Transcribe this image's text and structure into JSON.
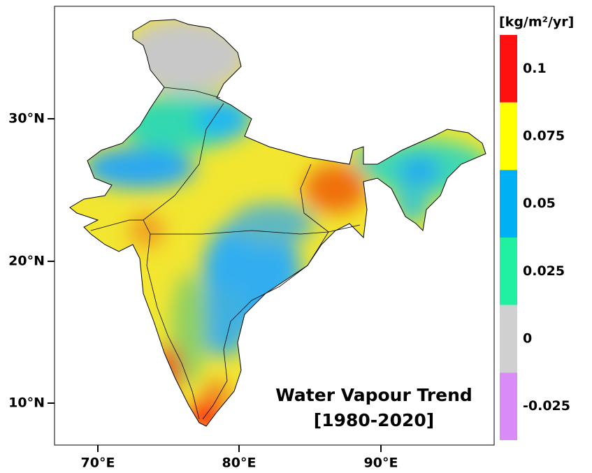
{
  "map": {
    "title": "Water Vapour Trend",
    "subtitle": "[1980-2020]",
    "x_ticks": [
      "70°E",
      "80°E",
      "90°E"
    ],
    "y_ticks": [
      "30°N",
      "20°N",
      "10°N"
    ],
    "colorbar": {
      "unit": "[kg/m²/yr]",
      "bins": [
        {
          "label": "0.1",
          "color": "#ff1010"
        },
        {
          "label": "0.075",
          "color": "#ffff00"
        },
        {
          "label": "0.05",
          "color": "#00b0f5"
        },
        {
          "label": "0.025",
          "color": "#20f0a0"
        },
        {
          "label": "0",
          "color": "#d0d0d0"
        },
        {
          "label": "-0.025",
          "color": "#d98cf5"
        }
      ]
    }
  }
}
